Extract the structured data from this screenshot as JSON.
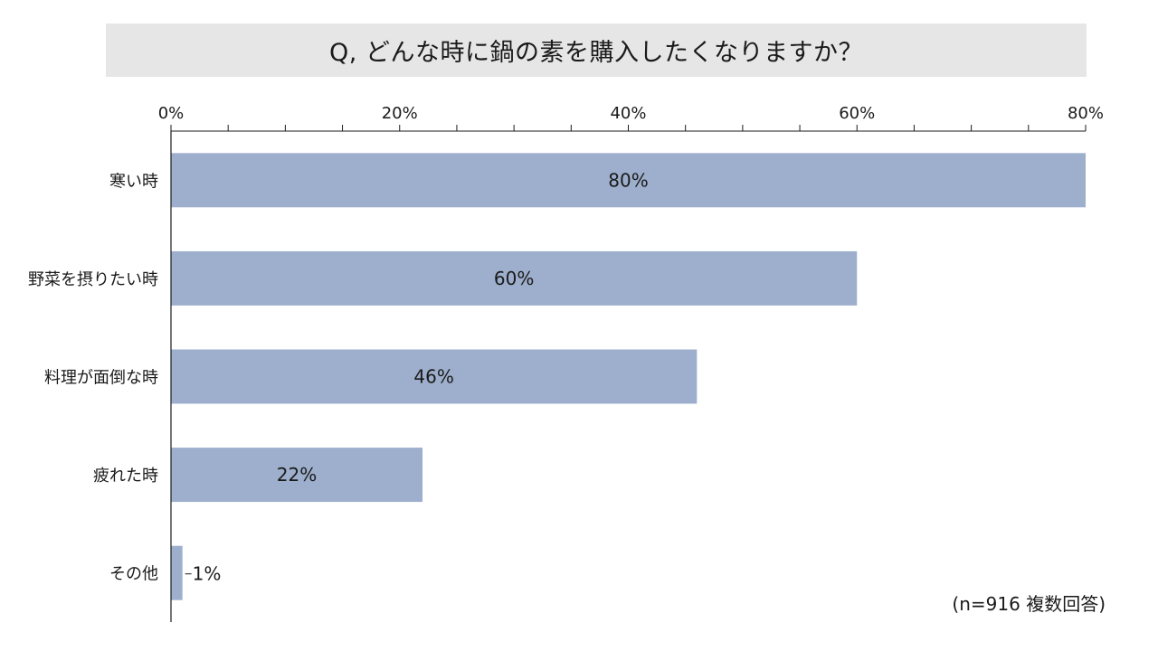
{
  "title": "Q, どんな時に鍋の素を購入したくなりますか？",
  "note": "(n=916 複数回答)",
  "chart_data": {
    "type": "bar",
    "orientation": "horizontal",
    "title": "Q, どんな時に鍋の素を購入したくなりますか？",
    "categories": [
      "寒い時",
      "野菜を摂りたい時",
      "料理が面倒な時",
      "疲れた時",
      "その他"
    ],
    "values": [
      80,
      60,
      46,
      22,
      1
    ],
    "data_labels": [
      "80%",
      "60%",
      "46%",
      "22%",
      "1%"
    ],
    "xlim": [
      0,
      80
    ],
    "x_ticks": [
      0,
      20,
      40,
      60,
      80
    ],
    "x_tick_labels": [
      "0%",
      "20%",
      "40%",
      "60%",
      "80%"
    ],
    "axis_position": "top",
    "grid": false,
    "legend": "none",
    "bar_color": "#9dafcc",
    "axis_color": "#1a1a1a"
  }
}
